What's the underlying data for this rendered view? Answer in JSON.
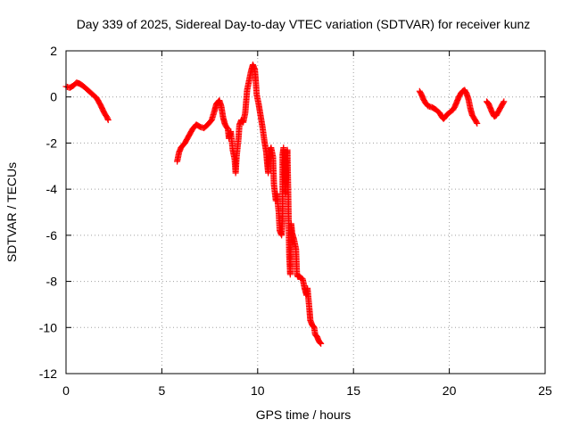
{
  "chart_data": {
    "type": "scatter",
    "title": "Day 339 of 2025, Sidereal Day-to-day VTEC variation (SDTVAR) for receiver kunz",
    "xlabel": "GPS time / hours",
    "ylabel": "SDTVAR / TECUs",
    "xlim": [
      0,
      25
    ],
    "ylim": [
      -12,
      2
    ],
    "xticks": [
      0,
      5,
      10,
      15,
      20,
      25
    ],
    "yticks": [
      2,
      0,
      -2,
      -4,
      -6,
      -8,
      -10,
      -12
    ],
    "xtick_labels": [
      "0",
      "5",
      "10",
      "15",
      "20",
      "25"
    ],
    "ytick_labels": [
      "2",
      "0",
      "-2",
      "-4",
      "-6",
      "-8",
      "-10",
      "-12"
    ],
    "grid": true,
    "legend": "none",
    "marker": "+",
    "color": "#ff0000",
    "series": [
      {
        "name": "SDTVAR",
        "segments": [
          [
            [
              0.0,
              0.45
            ],
            [
              0.2,
              0.4
            ],
            [
              0.4,
              0.5
            ],
            [
              0.55,
              0.62
            ],
            [
              0.7,
              0.58
            ],
            [
              0.85,
              0.5
            ],
            [
              1.0,
              0.4
            ],
            [
              1.2,
              0.25
            ],
            [
              1.4,
              0.1
            ],
            [
              1.6,
              -0.05
            ],
            [
              1.8,
              -0.35
            ],
            [
              2.0,
              -0.7
            ],
            [
              2.15,
              -0.9
            ],
            [
              2.2,
              -1.0
            ]
          ],
          [
            [
              5.8,
              -2.8
            ],
            [
              5.9,
              -2.4
            ],
            [
              6.0,
              -2.2
            ],
            [
              6.2,
              -2.0
            ],
            [
              6.4,
              -1.7
            ],
            [
              6.6,
              -1.4
            ],
            [
              6.8,
              -1.2
            ],
            [
              7.0,
              -1.3
            ],
            [
              7.2,
              -1.35
            ],
            [
              7.4,
              -1.2
            ],
            [
              7.6,
              -1.0
            ],
            [
              7.75,
              -0.6
            ],
            [
              7.85,
              -0.3
            ],
            [
              8.0,
              -0.15
            ],
            [
              8.1,
              -0.4
            ],
            [
              8.2,
              -0.9
            ],
            [
              8.3,
              -1.2
            ],
            [
              8.45,
              -1.4
            ],
            [
              8.5,
              -1.8
            ],
            [
              8.6,
              -1.5
            ],
            [
              8.7,
              -2.3
            ],
            [
              8.8,
              -2.7
            ],
            [
              8.85,
              -3.3
            ],
            [
              8.9,
              -2.6
            ],
            [
              9.0,
              -1.8
            ],
            [
              9.05,
              -1.2
            ],
            [
              9.15,
              -1.0
            ],
            [
              9.25,
              -1.1
            ],
            [
              9.35,
              -0.7
            ],
            [
              9.45,
              0.3
            ],
            [
              9.55,
              0.7
            ],
            [
              9.65,
              1.1
            ],
            [
              9.75,
              1.4
            ],
            [
              9.85,
              1.2
            ],
            [
              9.9,
              0.7
            ],
            [
              9.95,
              0.1
            ],
            [
              10.05,
              -0.3
            ],
            [
              10.15,
              -0.8
            ],
            [
              10.25,
              -1.3
            ],
            [
              10.35,
              -1.9
            ],
            [
              10.45,
              -2.4
            ],
            [
              10.5,
              -2.9
            ],
            [
              10.55,
              -3.3
            ],
            [
              10.6,
              -2.4
            ],
            [
              10.7,
              -2.2
            ],
            [
              10.8,
              -2.6
            ],
            [
              10.85,
              -3.8
            ],
            [
              10.95,
              -4.5
            ],
            [
              11.0,
              -4.2
            ],
            [
              11.1,
              -5.0
            ],
            [
              11.15,
              -5.8
            ],
            [
              11.25,
              -6.0
            ],
            [
              11.3,
              -5.3
            ],
            [
              11.3,
              -2.5
            ],
            [
              11.35,
              -2.2
            ],
            [
              11.4,
              -3.4
            ],
            [
              11.45,
              -4.2
            ],
            [
              11.5,
              -2.9
            ],
            [
              11.55,
              -2.3
            ],
            [
              11.6,
              -4.5
            ],
            [
              11.65,
              -6.9
            ],
            [
              11.7,
              -7.7
            ],
            [
              11.75,
              -5.5
            ],
            [
              11.8,
              -5.9
            ],
            [
              11.9,
              -6.2
            ],
            [
              12.0,
              -6.6
            ],
            [
              12.05,
              -7.7
            ],
            [
              12.1,
              -7.8
            ],
            [
              12.2,
              -7.8
            ],
            [
              12.35,
              -7.9
            ],
            [
              12.45,
              -8.3
            ],
            [
              12.55,
              -8.6
            ],
            [
              12.6,
              -8.3
            ],
            [
              12.7,
              -9.2
            ],
            [
              12.75,
              -9.7
            ],
            [
              12.85,
              -9.9
            ],
            [
              12.95,
              -10.0
            ],
            [
              13.0,
              -10.3
            ],
            [
              13.1,
              -10.4
            ],
            [
              13.2,
              -10.6
            ],
            [
              13.3,
              -10.7
            ]
          ],
          [
            [
              18.45,
              0.25
            ],
            [
              18.55,
              0.1
            ],
            [
              18.65,
              -0.1
            ],
            [
              18.75,
              -0.25
            ],
            [
              18.9,
              -0.4
            ],
            [
              19.1,
              -0.45
            ],
            [
              19.3,
              -0.55
            ],
            [
              19.5,
              -0.7
            ],
            [
              19.6,
              -0.85
            ],
            [
              19.7,
              -0.95
            ],
            [
              19.8,
              -0.85
            ],
            [
              19.9,
              -0.75
            ],
            [
              20.05,
              -0.65
            ],
            [
              20.2,
              -0.55
            ],
            [
              20.3,
              -0.4
            ],
            [
              20.4,
              -0.2
            ],
            [
              20.5,
              0.0
            ],
            [
              20.6,
              0.15
            ],
            [
              20.7,
              0.25
            ],
            [
              20.8,
              0.3
            ],
            [
              20.9,
              0.15
            ],
            [
              21.0,
              -0.1
            ],
            [
              21.1,
              -0.5
            ],
            [
              21.2,
              -0.8
            ],
            [
              21.35,
              -1.0
            ],
            [
              21.45,
              -1.15
            ]
          ],
          [
            [
              21.95,
              -0.2
            ],
            [
              22.05,
              -0.3
            ],
            [
              22.15,
              -0.5
            ],
            [
              22.25,
              -0.7
            ],
            [
              22.35,
              -0.85
            ],
            [
              22.45,
              -0.8
            ],
            [
              22.55,
              -0.65
            ],
            [
              22.65,
              -0.5
            ],
            [
              22.75,
              -0.35
            ],
            [
              22.85,
              -0.2
            ]
          ]
        ]
      }
    ]
  }
}
